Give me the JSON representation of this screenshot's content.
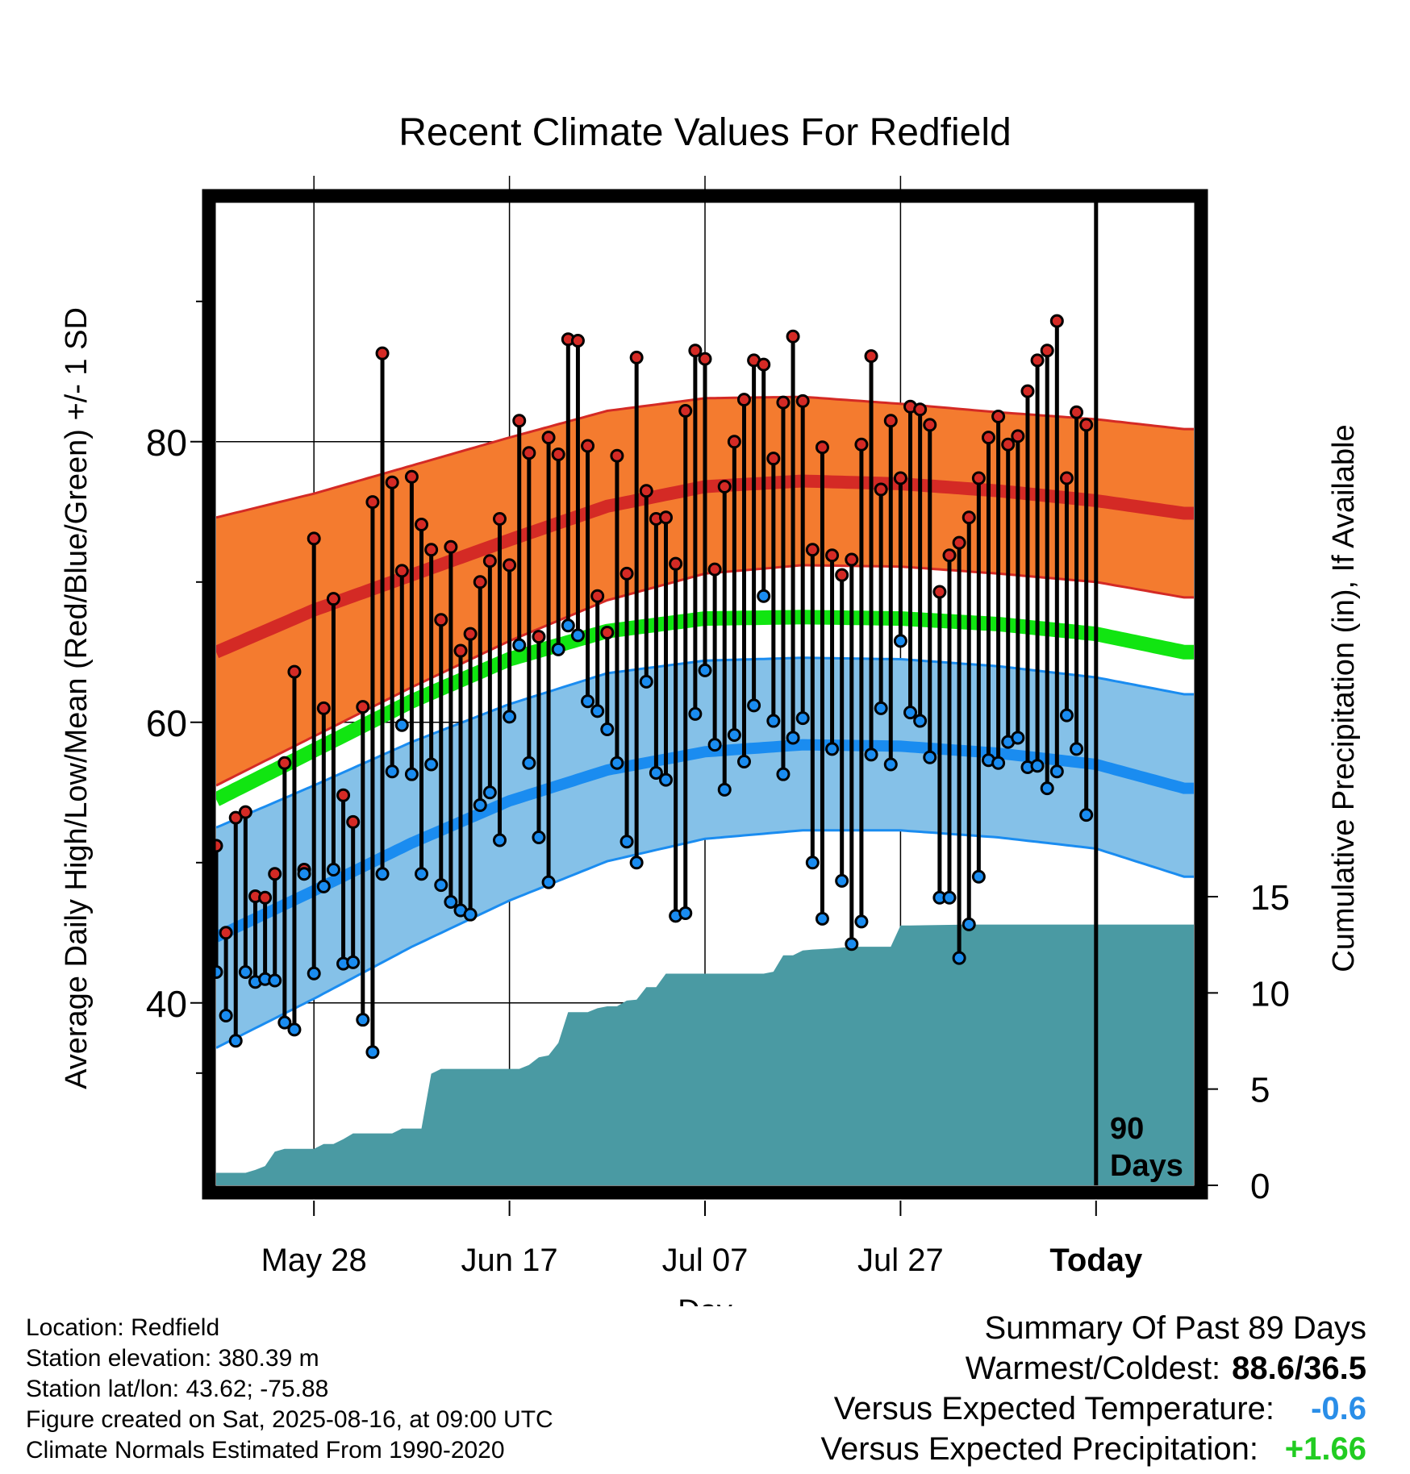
{
  "title": "Recent Climate Values For Redfield",
  "ylabel_left": "Average Daily High/Low/Mean (Red/Blue/Green) +/- 1 SD",
  "ylabel_right": "Cumulative Precipitation (in), If Available",
  "xlabel": "Day",
  "today_marker": {
    "label_line1": "90",
    "label_line2": "Days"
  },
  "station": {
    "location": "Location: Redfield",
    "elevation": "Station elevation: 380.39 m",
    "latlon": "Station lat/lon: 43.62; -75.88",
    "created": "Figure created on Sat, 2025-08-16, at 09:00 UTC",
    "normals": "Climate Normals Estimated From 1990-2020"
  },
  "summary": {
    "heading": "Summary Of Past 89 Days",
    "warm_cold_label": "Warmest/Coldest:",
    "warm_cold_value": "88.6/36.5",
    "temp_label": "Versus Expected Temperature:",
    "temp_value": "-0.6",
    "precip_label": "Versus Expected Precipitation:",
    "precip_value": "+1.66"
  },
  "colors": {
    "high_band": "#f47b2f",
    "high_mean": "#d42a25",
    "low_band": "#85c1e8",
    "low_mean": "#1a8cf0",
    "mean_line": "#11e511",
    "precip": "#4a9aa3",
    "high_dot": "#d42a25",
    "low_dot": "#1a8cf0",
    "temp_value": "#2a8ee8",
    "precip_value": "#22cc22"
  },
  "chart_data": {
    "type": "line",
    "x_start": "May 18",
    "days": 100,
    "today_index": 90,
    "x_ticks": [
      {
        "label": "May 28",
        "day": 10
      },
      {
        "label": "Jun 17",
        "day": 30
      },
      {
        "label": "Jul 07",
        "day": 50
      },
      {
        "label": "Jul 27",
        "day": 70
      },
      {
        "label": "Today",
        "day": 90
      }
    ],
    "y_left": {
      "min": 27,
      "max": 97,
      "ticks": [
        40,
        60,
        80
      ]
    },
    "y_right": {
      "min": 0,
      "max": 15,
      "ticks": [
        0,
        5,
        10,
        15
      ]
    },
    "normals": {
      "day": [
        0,
        10,
        20,
        30,
        40,
        50,
        60,
        70,
        80,
        90,
        99
      ],
      "high_plus_sd": [
        74.6,
        76.3,
        78.3,
        80.3,
        82.2,
        83.1,
        83.2,
        82.7,
        82.1,
        81.6,
        80.9
      ],
      "high_mean": [
        65.0,
        68.0,
        70.5,
        73.0,
        75.4,
        76.8,
        77.2,
        77.0,
        76.5,
        75.8,
        74.9
      ],
      "high_minus_sd": [
        55.5,
        59.0,
        62.5,
        65.8,
        68.7,
        70.6,
        71.2,
        71.1,
        70.6,
        70.0,
        68.9
      ],
      "mean": [
        54.5,
        58.0,
        61.5,
        64.5,
        66.5,
        67.4,
        67.5,
        67.4,
        67.0,
        66.3,
        65.0
      ],
      "low_plus_sd": [
        52.5,
        55.5,
        58.6,
        61.3,
        63.5,
        64.4,
        64.6,
        64.5,
        64.0,
        63.2,
        62.0
      ],
      "low_mean": [
        44.7,
        48.0,
        51.4,
        54.4,
        56.6,
        57.9,
        58.4,
        58.3,
        57.8,
        57.0,
        55.3
      ],
      "low_minus_sd": [
        36.8,
        40.3,
        44.0,
        47.3,
        50.1,
        51.7,
        52.3,
        52.3,
        51.8,
        51.0,
        49.0
      ]
    },
    "highs": [
      51.2,
      45.0,
      53.2,
      53.6,
      47.6,
      47.5,
      49.2,
      57.1,
      63.6,
      49.5,
      73.1,
      61.0,
      68.8,
      54.8,
      52.9,
      61.1,
      75.7,
      86.3,
      77.1,
      70.8,
      77.5,
      74.1,
      72.3,
      67.3,
      72.5,
      65.1,
      66.3,
      70.0,
      71.5,
      74.5,
      71.2,
      81.5,
      79.2,
      66.1,
      80.3,
      79.1,
      87.3,
      87.2,
      79.7,
      69.0,
      66.4,
      79.0,
      70.6,
      86.0,
      76.5,
      74.5,
      74.6,
      71.3,
      82.2,
      86.5,
      85.9,
      70.9,
      76.8,
      80.0,
      83.0,
      85.8,
      85.5,
      78.8,
      82.8,
      87.5,
      82.9,
      72.3,
      79.6,
      71.9,
      70.5,
      71.6,
      79.8,
      86.1,
      76.6,
      81.5,
      77.4,
      82.5,
      82.3,
      81.2,
      69.3,
      71.9,
      72.8,
      74.6,
      77.4,
      80.3,
      81.8,
      79.8,
      80.4,
      83.6,
      85.8,
      86.5,
      88.6,
      77.4,
      82.1,
      81.2
    ],
    "lows": [
      42.2,
      39.1,
      37.3,
      42.2,
      41.5,
      41.7,
      41.6,
      38.6,
      38.1,
      49.2,
      42.1,
      48.3,
      49.5,
      42.8,
      42.9,
      38.8,
      36.5,
      49.2,
      56.5,
      59.8,
      56.3,
      49.2,
      57.0,
      48.4,
      47.2,
      46.6,
      46.3,
      54.1,
      55.0,
      51.6,
      60.4,
      65.5,
      57.1,
      51.8,
      48.6,
      65.2,
      66.9,
      66.2,
      61.5,
      60.8,
      59.5,
      57.1,
      51.5,
      50.0,
      62.9,
      56.4,
      55.9,
      46.2,
      46.4,
      60.6,
      63.7,
      58.4,
      55.2,
      59.1,
      57.2,
      61.2,
      69.0,
      60.1,
      56.3,
      58.9,
      60.3,
      50.0,
      46.0,
      58.1,
      48.7,
      44.2,
      45.8,
      57.7,
      61.0,
      57.0,
      65.8,
      60.7,
      60.1,
      57.5,
      47.5,
      47.5,
      43.2,
      45.6,
      49.0,
      57.3,
      57.1,
      58.6,
      58.9,
      56.8,
      56.9,
      55.3,
      56.5,
      60.5,
      58.1,
      53.4
    ],
    "precip_cumulative": [
      [
        0,
        0.65
      ],
      [
        3,
        0.65
      ],
      [
        4,
        0.8
      ],
      [
        5,
        1.0
      ],
      [
        6,
        1.75
      ],
      [
        7,
        1.9
      ],
      [
        10,
        1.9
      ],
      [
        11,
        2.15
      ],
      [
        12,
        2.15
      ],
      [
        13,
        2.4
      ],
      [
        14,
        2.7
      ],
      [
        18,
        2.7
      ],
      [
        19,
        2.95
      ],
      [
        21,
        2.95
      ],
      [
        22,
        5.8
      ],
      [
        23,
        6.05
      ],
      [
        31,
        6.05
      ],
      [
        32,
        6.25
      ],
      [
        33,
        6.65
      ],
      [
        34,
        6.75
      ],
      [
        35,
        7.4
      ],
      [
        36,
        9.0
      ],
      [
        38,
        9.0
      ],
      [
        39,
        9.2
      ],
      [
        40,
        9.3
      ],
      [
        41,
        9.3
      ],
      [
        42,
        9.6
      ],
      [
        43,
        9.65
      ],
      [
        44,
        10.3
      ],
      [
        45,
        10.3
      ],
      [
        46,
        11.0
      ],
      [
        56,
        11.0
      ],
      [
        57,
        11.1
      ],
      [
        58,
        11.95
      ],
      [
        59,
        11.95
      ],
      [
        60,
        12.2
      ],
      [
        61,
        12.25
      ],
      [
        63,
        12.3
      ],
      [
        65,
        12.4
      ],
      [
        66,
        12.4
      ],
      [
        69,
        12.4
      ],
      [
        70,
        13.5
      ],
      [
        71,
        13.5
      ],
      [
        77,
        13.55
      ],
      [
        99,
        13.55
      ]
    ]
  }
}
